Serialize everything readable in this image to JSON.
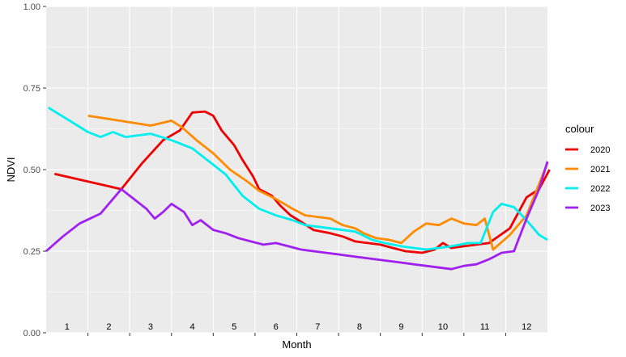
{
  "chart_data": {
    "type": "line",
    "xlabel": "Month",
    "ylabel": "NDVI",
    "ylim": [
      0,
      1
    ],
    "xlim": [
      0.5,
      12.5
    ],
    "y_ticks": [
      0.0,
      0.25,
      0.5,
      0.75,
      1.0
    ],
    "y_tick_labels": [
      "0.00",
      "0.25",
      "0.50",
      "0.75",
      "1.00"
    ],
    "month_labels": [
      "1",
      "2",
      "3",
      "4",
      "5",
      "6",
      "7",
      "8",
      "9",
      "10",
      "11",
      "12"
    ],
    "grid": true,
    "legend": {
      "title": "colour",
      "position": "right"
    },
    "series": [
      {
        "name": "2020",
        "color": "#ee0000",
        "points": [
          [
            0.7,
            0.487
          ],
          [
            2.3,
            0.44
          ],
          [
            2.8,
            0.52
          ],
          [
            3.3,
            0.59
          ],
          [
            3.7,
            0.62
          ],
          [
            4.0,
            0.675
          ],
          [
            4.3,
            0.678
          ],
          [
            4.5,
            0.665
          ],
          [
            4.7,
            0.62
          ],
          [
            5.0,
            0.575
          ],
          [
            5.2,
            0.53
          ],
          [
            5.45,
            0.48
          ],
          [
            5.6,
            0.44
          ],
          [
            5.9,
            0.42
          ],
          [
            6.1,
            0.39
          ],
          [
            6.35,
            0.36
          ],
          [
            6.6,
            0.34
          ],
          [
            6.9,
            0.315
          ],
          [
            7.3,
            0.305
          ],
          [
            7.6,
            0.295
          ],
          [
            7.9,
            0.28
          ],
          [
            8.2,
            0.275
          ],
          [
            8.5,
            0.27
          ],
          [
            8.8,
            0.26
          ],
          [
            9.1,
            0.25
          ],
          [
            9.5,
            0.245
          ],
          [
            9.8,
            0.255
          ],
          [
            10.0,
            0.275
          ],
          [
            10.2,
            0.26
          ],
          [
            10.5,
            0.265
          ],
          [
            10.8,
            0.27
          ],
          [
            11.1,
            0.275
          ],
          [
            11.6,
            0.32
          ],
          [
            12.0,
            0.415
          ],
          [
            12.3,
            0.44
          ],
          [
            12.55,
            0.5
          ]
        ]
      },
      {
        "name": "2021",
        "color": "#ff8c00",
        "points": [
          [
            1.5,
            0.665
          ],
          [
            2.5,
            0.645
          ],
          [
            3.0,
            0.635
          ],
          [
            3.5,
            0.65
          ],
          [
            3.75,
            0.63
          ],
          [
            4.1,
            0.59
          ],
          [
            4.5,
            0.55
          ],
          [
            4.9,
            0.5
          ],
          [
            5.3,
            0.465
          ],
          [
            5.6,
            0.435
          ],
          [
            6.0,
            0.41
          ],
          [
            6.4,
            0.38
          ],
          [
            6.7,
            0.36
          ],
          [
            7.0,
            0.355
          ],
          [
            7.3,
            0.35
          ],
          [
            7.6,
            0.33
          ],
          [
            7.9,
            0.32
          ],
          [
            8.1,
            0.305
          ],
          [
            8.4,
            0.29
          ],
          [
            8.7,
            0.285
          ],
          [
            9.0,
            0.275
          ],
          [
            9.3,
            0.31
          ],
          [
            9.6,
            0.335
          ],
          [
            9.9,
            0.33
          ],
          [
            10.2,
            0.35
          ],
          [
            10.5,
            0.335
          ],
          [
            10.8,
            0.33
          ],
          [
            11.0,
            0.35
          ],
          [
            11.2,
            0.255
          ],
          [
            11.6,
            0.3
          ],
          [
            12.0,
            0.36
          ],
          [
            12.5,
            0.52
          ]
        ]
      },
      {
        "name": "2022",
        "color": "#00eeee",
        "points": [
          [
            0.55,
            0.69
          ],
          [
            1.0,
            0.655
          ],
          [
            1.5,
            0.615
          ],
          [
            1.8,
            0.6
          ],
          [
            2.1,
            0.615
          ],
          [
            2.4,
            0.6
          ],
          [
            2.7,
            0.605
          ],
          [
            3.0,
            0.61
          ],
          [
            3.5,
            0.59
          ],
          [
            4.0,
            0.565
          ],
          [
            4.4,
            0.525
          ],
          [
            4.8,
            0.485
          ],
          [
            5.2,
            0.42
          ],
          [
            5.6,
            0.38
          ],
          [
            6.0,
            0.36
          ],
          [
            6.4,
            0.345
          ],
          [
            6.7,
            0.33
          ],
          [
            7.0,
            0.325
          ],
          [
            7.3,
            0.32
          ],
          [
            7.6,
            0.315
          ],
          [
            7.9,
            0.31
          ],
          [
            8.3,
            0.285
          ],
          [
            8.6,
            0.275
          ],
          [
            9.0,
            0.265
          ],
          [
            9.3,
            0.26
          ],
          [
            9.6,
            0.255
          ],
          [
            9.9,
            0.26
          ],
          [
            10.2,
            0.265
          ],
          [
            10.6,
            0.275
          ],
          [
            10.9,
            0.275
          ],
          [
            11.2,
            0.37
          ],
          [
            11.4,
            0.395
          ],
          [
            11.7,
            0.385
          ],
          [
            12.0,
            0.345
          ],
          [
            12.3,
            0.3
          ],
          [
            12.5,
            0.285
          ]
        ]
      },
      {
        "name": "2023",
        "color": "#a020f0",
        "points": [
          [
            0.5,
            0.25
          ],
          [
            0.9,
            0.295
          ],
          [
            1.3,
            0.335
          ],
          [
            1.8,
            0.365
          ],
          [
            2.3,
            0.44
          ],
          [
            2.6,
            0.41
          ],
          [
            2.9,
            0.38
          ],
          [
            3.1,
            0.35
          ],
          [
            3.3,
            0.37
          ],
          [
            3.5,
            0.395
          ],
          [
            3.8,
            0.37
          ],
          [
            4.0,
            0.33
          ],
          [
            4.2,
            0.345
          ],
          [
            4.5,
            0.315
          ],
          [
            4.8,
            0.305
          ],
          [
            5.1,
            0.29
          ],
          [
            5.4,
            0.28
          ],
          [
            5.7,
            0.27
          ],
          [
            6.0,
            0.275
          ],
          [
            6.3,
            0.265
          ],
          [
            6.6,
            0.255
          ],
          [
            6.9,
            0.25
          ],
          [
            7.2,
            0.245
          ],
          [
            7.5,
            0.24
          ],
          [
            7.8,
            0.235
          ],
          [
            8.1,
            0.23
          ],
          [
            8.4,
            0.225
          ],
          [
            8.7,
            0.22
          ],
          [
            9.0,
            0.215
          ],
          [
            9.3,
            0.21
          ],
          [
            9.6,
            0.205
          ],
          [
            9.9,
            0.2
          ],
          [
            10.2,
            0.195
          ],
          [
            10.5,
            0.205
          ],
          [
            10.8,
            0.21
          ],
          [
            11.1,
            0.225
          ],
          [
            11.4,
            0.245
          ],
          [
            11.7,
            0.25
          ],
          [
            12.0,
            0.35
          ],
          [
            12.3,
            0.44
          ],
          [
            12.5,
            0.525
          ]
        ]
      }
    ]
  }
}
